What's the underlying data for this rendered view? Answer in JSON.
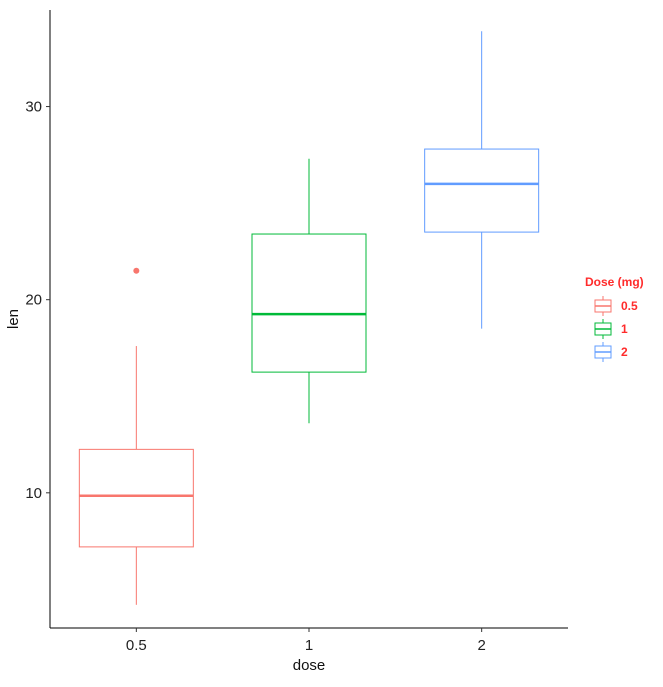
{
  "chart_data": {
    "type": "boxplot",
    "categories": [
      "0.5",
      "1",
      "2"
    ],
    "xlabel": "dose",
    "ylabel": "len",
    "ylim": [
      3,
      35
    ],
    "yticks": [
      10,
      20,
      30
    ],
    "grid": false,
    "legend": {
      "title": "Dose (mg)",
      "placement": "right",
      "entries": [
        "0.5",
        "1",
        "2"
      ]
    },
    "series": [
      {
        "category": "0.5",
        "color": "#f8766d",
        "min": 4.2,
        "q1": 7.2,
        "median": 9.85,
        "q3": 12.25,
        "max": 17.6,
        "outliers": [
          21.5
        ]
      },
      {
        "category": "1",
        "color": "#00ba38",
        "min": 13.6,
        "q1": 16.25,
        "median": 19.25,
        "q3": 23.4,
        "max": 27.3,
        "outliers": []
      },
      {
        "category": "2",
        "color": "#619cff",
        "min": 18.5,
        "q1": 23.5,
        "median": 26.0,
        "q3": 27.8,
        "max": 33.9,
        "outliers": []
      }
    ]
  }
}
